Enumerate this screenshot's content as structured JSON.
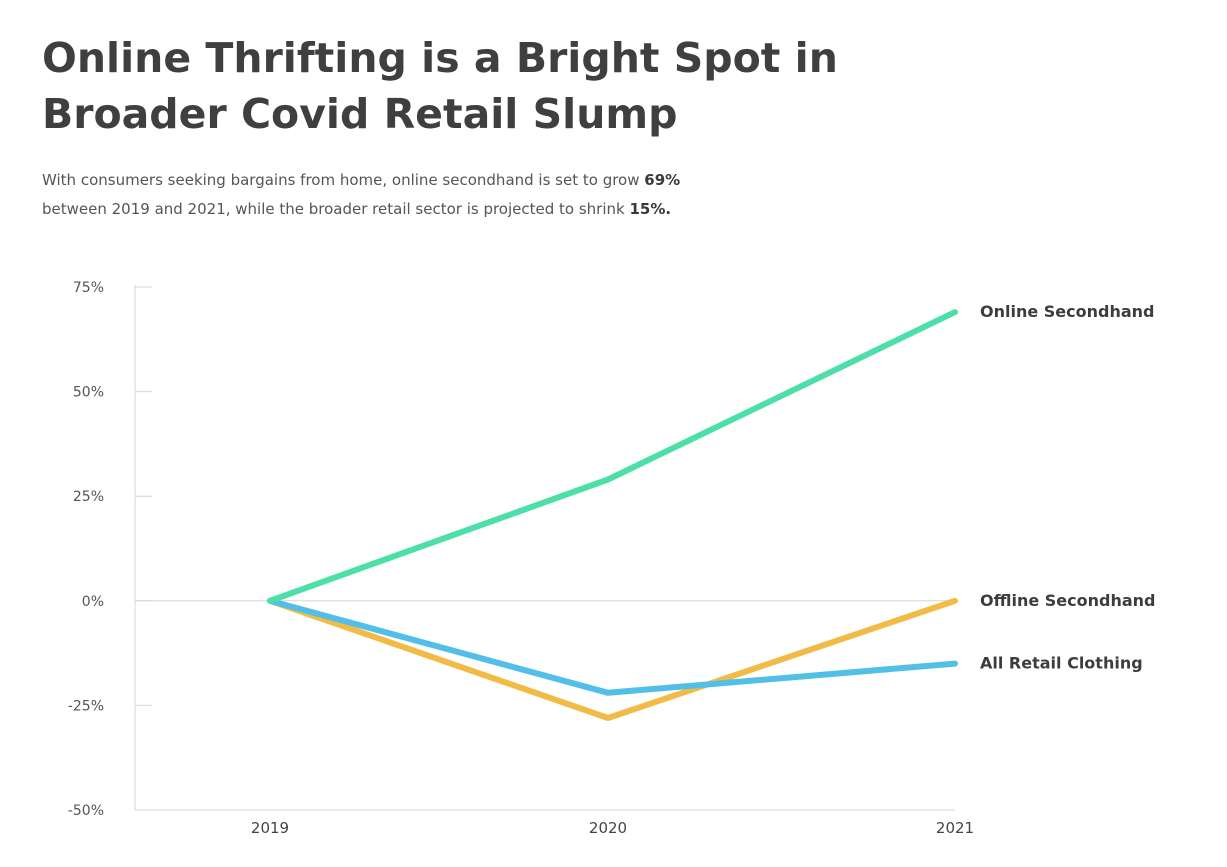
{
  "header": {
    "title_line1": "Online Thrifting is a Bright Spot in",
    "title_line2": "Broader Covid Retail Slump",
    "subtitle_line1_text": "With consumers seeking bargains from home, online secondhand is set to grow ",
    "subtitle_line1_bold": "69%",
    "subtitle_line2_text": "between 2019 and 2021, while the broader retail sector is projected to shrink ",
    "subtitle_line2_bold": "15%."
  },
  "chart_data": {
    "type": "line",
    "title": "Online Thrifting is a Bright Spot in Broader Covid Retail Slump",
    "xlabel": "",
    "ylabel": "",
    "x": [
      "2019",
      "2020",
      "2021"
    ],
    "ylim": [
      -50,
      75
    ],
    "y_ticks": [
      75,
      50,
      25,
      0,
      -25,
      -50
    ],
    "y_tick_labels": [
      "75%",
      "50%",
      "25%",
      "0%",
      "-25%",
      "-50%"
    ],
    "grid": false,
    "legend": "direct labels at right end of lines",
    "series": [
      {
        "name": "Online Secondhand",
        "values": [
          0,
          29,
          69
        ],
        "color": "#4ddfa8"
      },
      {
        "name": "Offline Secondhand",
        "values": [
          0,
          -28,
          0
        ],
        "color": "#f2bb45"
      },
      {
        "name": "All Retail Clothing",
        "values": [
          0,
          -22,
          -15
        ],
        "color": "#52bfe9"
      }
    ]
  }
}
